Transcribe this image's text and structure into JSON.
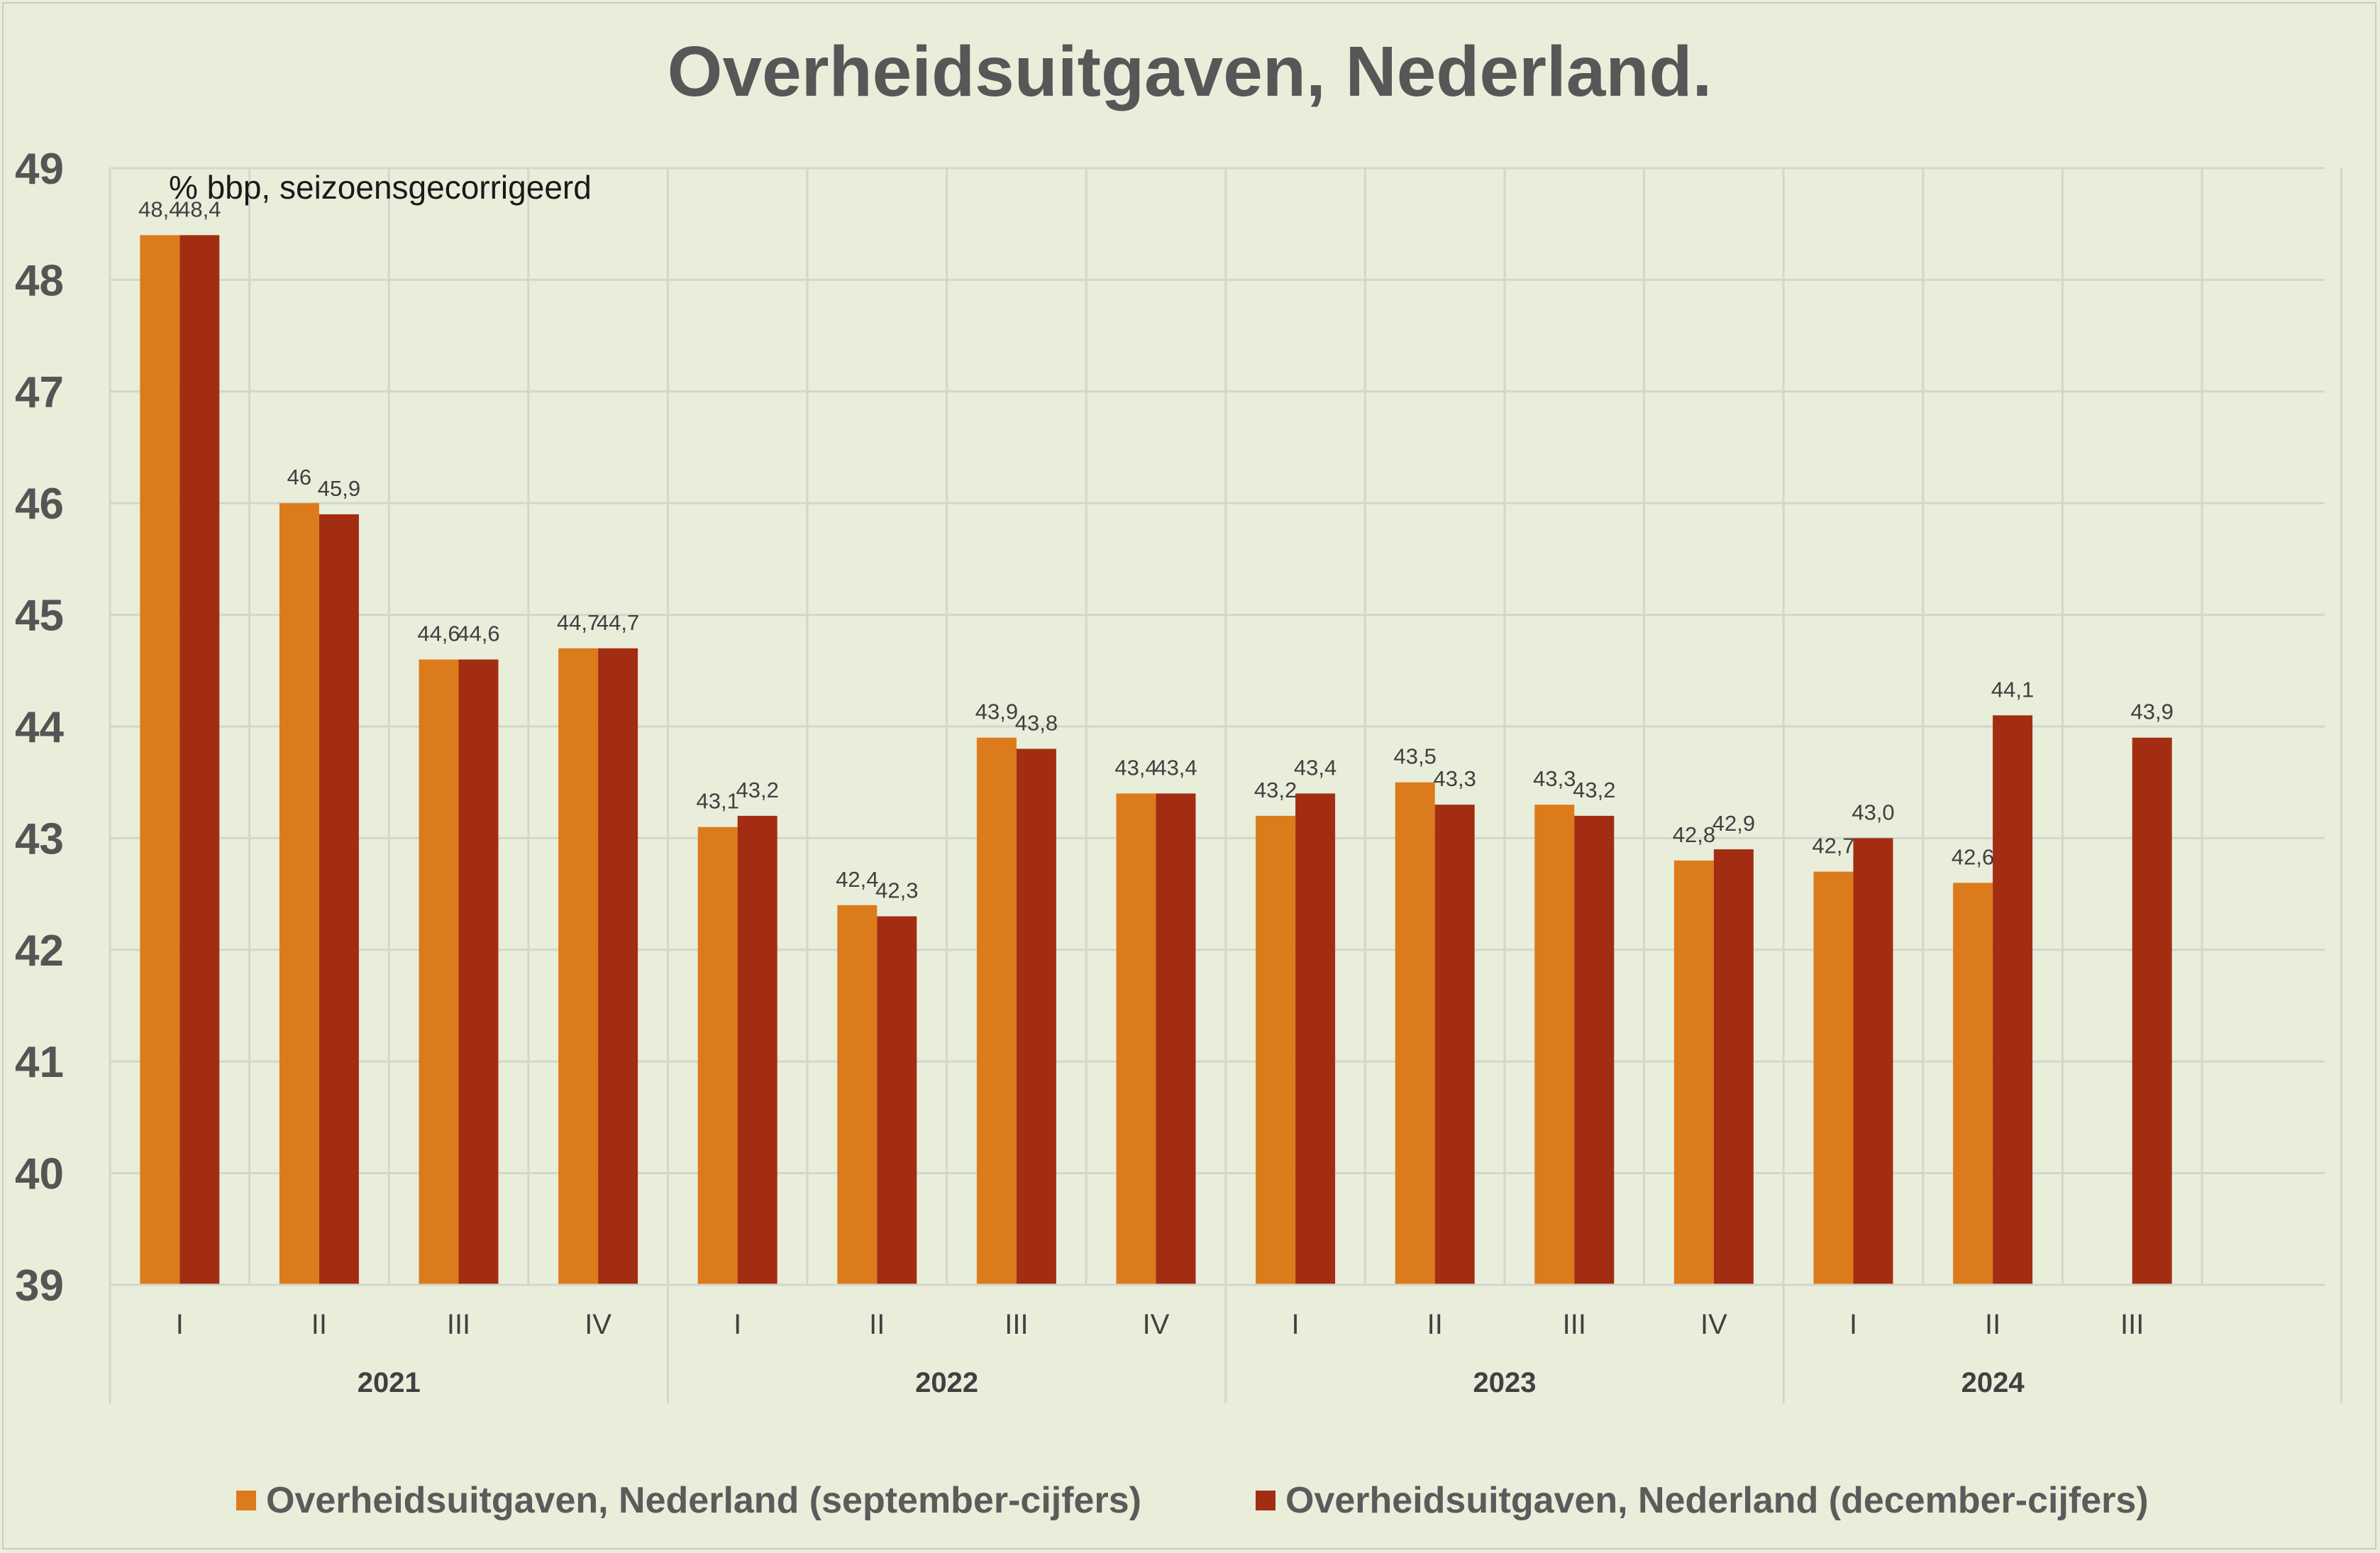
{
  "chart_data": {
    "type": "bar",
    "title": "Overheidsuitgaven, Nederland.",
    "annotation": "% bbp, seizoensgecorrigeerd",
    "ylim": [
      39,
      49
    ],
    "yticks": [
      39,
      40,
      41,
      42,
      43,
      44,
      45,
      46,
      47,
      48,
      49
    ],
    "grid": true,
    "legend_position": "bottom",
    "categories": [
      "I",
      "II",
      "III",
      "IV",
      "I",
      "II",
      "III",
      "IV",
      "I",
      "II",
      "III",
      "IV",
      "I",
      "II",
      "III"
    ],
    "years": [
      {
        "label": "2021",
        "quarters": 4
      },
      {
        "label": "2022",
        "quarters": 4
      },
      {
        "label": "2023",
        "quarters": 4
      },
      {
        "label": "2024",
        "quarters": 3
      }
    ],
    "series": [
      {
        "name": "Overheidsuitgaven, Nederland (september-cijfers)",
        "color": "#dc7b1c",
        "values": [
          48.4,
          46.0,
          44.6,
          44.7,
          43.1,
          42.4,
          43.9,
          43.4,
          43.2,
          43.5,
          43.3,
          42.8,
          42.7,
          42.6,
          null
        ],
        "labels": [
          "48,4",
          "46",
          "44,6",
          "44,7",
          "43,1",
          "42,4",
          "43,9",
          "43,4",
          "43,2",
          "43,5",
          "43,3",
          "42,8",
          "42,7",
          "42,6",
          ""
        ]
      },
      {
        "name": "Overheidsuitgaven, Nederland (december-cijfers)",
        "color": "#a32d12",
        "values": [
          48.4,
          45.9,
          44.6,
          44.7,
          43.2,
          42.3,
          43.8,
          43.4,
          43.4,
          43.3,
          43.2,
          42.9,
          43.0,
          44.1,
          43.9
        ],
        "labels": [
          "48,4",
          "45,9",
          "44,6",
          "44,7",
          "43,2",
          "42,3",
          "43,8",
          "43,4",
          "43,4",
          "43,3",
          "43,2",
          "42,9",
          "43,0",
          "44,1",
          "43,9"
        ]
      }
    ]
  }
}
